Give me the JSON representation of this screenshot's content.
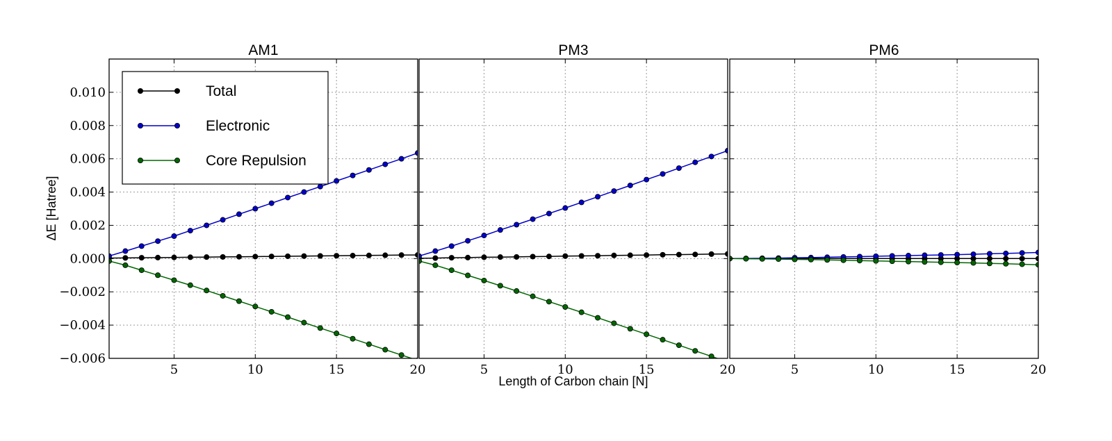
{
  "figure": {
    "ylabel": "ΔE [Hatree]",
    "xlabel": "Length of Carbon chain [N]"
  },
  "legend": {
    "items": [
      {
        "label": "Total",
        "color": "#000000"
      },
      {
        "label": "Electronic",
        "color": "#0000cc"
      },
      {
        "label": "Core Repulsion",
        "color": "#006600"
      }
    ],
    "placement": "upper-left of first panel"
  },
  "chart_data": [
    {
      "type": "line",
      "title": "AM1",
      "x": [
        1,
        2,
        3,
        4,
        5,
        6,
        7,
        8,
        9,
        10,
        11,
        12,
        13,
        14,
        15,
        16,
        17,
        18,
        19,
        20
      ],
      "xlim": [
        1,
        20
      ],
      "ylim": [
        -0.006,
        0.012
      ],
      "xticks": [
        5,
        10,
        15,
        20
      ],
      "yticks": [
        -0.006,
        -0.004,
        -0.002,
        0.0,
        0.002,
        0.004,
        0.006,
        0.008,
        0.01
      ],
      "ytick_labels": [
        "−0.006",
        "−0.004",
        "−0.002",
        "0.000",
        "0.002",
        "0.004",
        "0.006",
        "0.008",
        "0.010"
      ],
      "grid": true,
      "series": [
        {
          "name": "Total",
          "color": "#000000",
          "values": [
            3e-05,
            4e-05,
            5e-05,
            6e-05,
            7e-05,
            8e-05,
            9e-05,
            0.0001,
            0.00011,
            0.00012,
            0.00013,
            0.00014,
            0.00015,
            0.00016,
            0.00017,
            0.00018,
            0.00019,
            0.0002,
            0.00021,
            0.00022
          ]
        },
        {
          "name": "Electronic",
          "color": "#0000cc",
          "values": [
            0.00015,
            0.00045,
            0.00075,
            0.00105,
            0.00135,
            0.00168,
            0.002,
            0.00233,
            0.00267,
            0.003,
            0.00333,
            0.00367,
            0.004,
            0.00433,
            0.00467,
            0.005,
            0.00533,
            0.00567,
            0.006,
            0.00635
          ]
        },
        {
          "name": "Core Repulsion",
          "color": "#006600",
          "values": [
            -0.00015,
            -0.0004,
            -0.0007,
            -0.001,
            -0.0013,
            -0.0016,
            -0.00192,
            -0.00224,
            -0.00256,
            -0.00288,
            -0.0032,
            -0.00352,
            -0.00385,
            -0.00418,
            -0.0045,
            -0.00482,
            -0.00515,
            -0.00548,
            -0.0058,
            -0.00612
          ]
        }
      ]
    },
    {
      "type": "line",
      "title": "PM3",
      "x": [
        1,
        2,
        3,
        4,
        5,
        6,
        7,
        8,
        9,
        10,
        11,
        12,
        13,
        14,
        15,
        16,
        17,
        18,
        19,
        20
      ],
      "xlim": [
        1,
        20
      ],
      "ylim": [
        -0.006,
        0.012
      ],
      "xticks": [
        5,
        10,
        15,
        20
      ],
      "grid": true,
      "series": [
        {
          "name": "Total",
          "color": "#000000",
          "values": [
            2e-05,
            3e-05,
            5e-05,
            6e-05,
            8e-05,
            9e-05,
            0.0001,
            0.00012,
            0.00013,
            0.00015,
            0.00016,
            0.00017,
            0.00019,
            0.0002,
            0.00021,
            0.00023,
            0.00024,
            0.00025,
            0.00027,
            0.00028
          ]
        },
        {
          "name": "Electronic",
          "color": "#0000cc",
          "values": [
            0.00015,
            0.00045,
            0.00075,
            0.00107,
            0.00139,
            0.00172,
            0.00204,
            0.00237,
            0.00271,
            0.00304,
            0.00338,
            0.00372,
            0.00406,
            0.0044,
            0.00475,
            0.00509,
            0.00544,
            0.00579,
            0.00614,
            0.00649
          ]
        },
        {
          "name": "Core Repulsion",
          "color": "#006600",
          "values": [
            -0.00015,
            -0.0004,
            -0.0007,
            -0.00101,
            -0.00132,
            -0.00163,
            -0.00195,
            -0.00227,
            -0.00259,
            -0.00291,
            -0.00323,
            -0.00356,
            -0.00389,
            -0.00422,
            -0.00455,
            -0.00488,
            -0.00521,
            -0.00555,
            -0.00588,
            -0.00622
          ]
        }
      ]
    },
    {
      "type": "line",
      "title": "PM6",
      "x": [
        1,
        2,
        3,
        4,
        5,
        6,
        7,
        8,
        9,
        10,
        11,
        12,
        13,
        14,
        15,
        16,
        17,
        18,
        19,
        20
      ],
      "xlim": [
        1,
        20
      ],
      "ylim": [
        -0.006,
        0.012
      ],
      "xticks": [
        5,
        10,
        15,
        20
      ],
      "grid": true,
      "series": [
        {
          "name": "Total",
          "color": "#000000",
          "values": [
            0,
            0,
            0,
            0,
            0,
            0,
            0,
            0,
            0,
            0,
            0,
            0,
            0,
            0,
            0,
            0,
            0,
            0,
            0,
            0
          ]
        },
        {
          "name": "Electronic",
          "color": "#0000cc",
          "values": [
            0.0,
            1e-05,
            2e-05,
            3e-05,
            5e-05,
            6e-05,
            8e-05,
            0.0001,
            0.00012,
            0.00014,
            0.00016,
            0.00018,
            0.0002,
            0.00022,
            0.00024,
            0.00026,
            0.00029,
            0.00031,
            0.00034,
            0.00037
          ]
        },
        {
          "name": "Core Repulsion",
          "color": "#006600",
          "values": [
            0.0,
            -1e-05,
            -2e-05,
            -3e-05,
            -5e-05,
            -6e-05,
            -8e-05,
            -0.0001,
            -0.00012,
            -0.00014,
            -0.00016,
            -0.00018,
            -0.0002,
            -0.00022,
            -0.00024,
            -0.00026,
            -0.00029,
            -0.00031,
            -0.00034,
            -0.00037
          ]
        }
      ]
    }
  ]
}
